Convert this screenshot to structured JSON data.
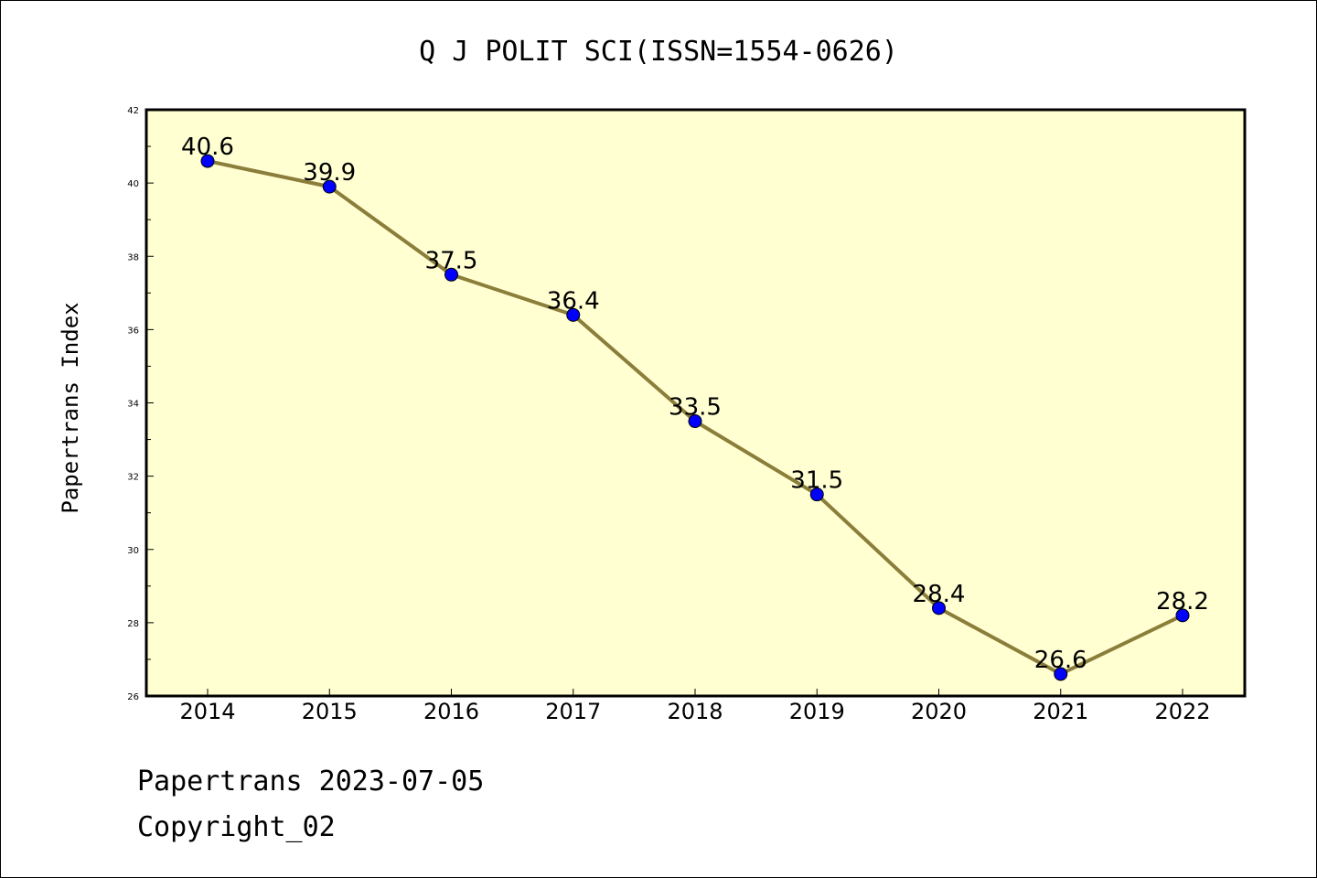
{
  "chart_data": {
    "type": "line",
    "title": "Q J POLIT SCI(ISSN=1554-0626)",
    "xlabel": "",
    "ylabel": "Papertrans Index",
    "categories": [
      "2014",
      "2015",
      "2016",
      "2017",
      "2018",
      "2019",
      "2020",
      "2021",
      "2022"
    ],
    "values": [
      40.6,
      39.9,
      37.5,
      36.4,
      33.5,
      31.5,
      28.4,
      26.6,
      28.2
    ],
    "data_labels": [
      "40.6",
      "39.9",
      "37.5",
      "36.4",
      "33.5",
      "31.5",
      "28.4",
      "26.6",
      "28.2"
    ],
    "ylim": [
      26,
      42
    ],
    "yticks": [
      26,
      28,
      30,
      32,
      34,
      36,
      38,
      40,
      42
    ],
    "grid": false,
    "legend": "none",
    "colors": {
      "plot_background": "#ffffd2",
      "line": "#8b7d3a",
      "marker": "#0000ff"
    }
  },
  "footer": {
    "line1": "Papertrans 2023-07-05",
    "line2": "Copyright_02"
  }
}
